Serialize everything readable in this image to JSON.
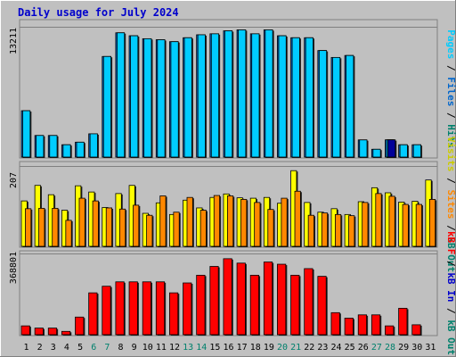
{
  "chart_data": {
    "type": "bar",
    "title": "Daily usage for July 2024",
    "days": [
      "1",
      "2",
      "3",
      "4",
      "5",
      "6",
      "7",
      "8",
      "9",
      "10",
      "11",
      "12",
      "13",
      "14",
      "15",
      "16",
      "17",
      "18",
      "19",
      "20",
      "21",
      "22",
      "23",
      "24",
      "25",
      "26",
      "27",
      "28",
      "29",
      "30",
      "31"
    ],
    "weekend_days": [
      "6",
      "7",
      "13",
      "14",
      "20",
      "21",
      "27",
      "28"
    ],
    "colors": {
      "background": "#c0c0c0",
      "title": "#0000cc",
      "day_normal": "#000000",
      "day_weekend": "#00806c",
      "hits": "#00ccff",
      "files": "#0066cc",
      "pages": "#000099",
      "visits": "#ffff00",
      "sites": "#ff8800",
      "kb_in": "#0000cc",
      "kb_out": "#00806c",
      "kb_f": "#ff0000"
    },
    "panels": [
      {
        "id": "hits_files_pages",
        "ymax_label": "13211",
        "ymax": 13211,
        "side_labels": [
          {
            "text": "Pages",
            "color": "#00ccff"
          },
          {
            "text": " / ",
            "color": "#000000"
          },
          {
            "text": "Files",
            "color": "#0066cc"
          },
          {
            "text": " / ",
            "color": "#000000"
          },
          {
            "text": "Hits",
            "color": "#00806c"
          }
        ],
        "series": [
          {
            "name": "Hits",
            "color": "#0066cc",
            "values": [
              4700,
              2190,
              2190,
              1250,
              1510,
              2360,
              10200,
              12600,
              12300,
              12000,
              11900,
              11700,
              12100,
              12400,
              12500,
              12800,
              12900,
              12500,
              12900,
              12300,
              12100,
              12100,
              10800,
              10100,
              10300,
              1740,
              790,
              1750,
              1250,
              1250,
              0
            ]
          },
          {
            "name": "Files",
            "color": "#00ccff",
            "values": [
              4700,
              2190,
              2190,
              1250,
              1510,
              2360,
              10200,
              12600,
              12300,
              12000,
              11900,
              11700,
              12100,
              12400,
              12500,
              12800,
              12900,
              12500,
              12900,
              12300,
              12100,
              12100,
              10800,
              10100,
              10300,
              1740,
              790,
              1750,
              1250,
              1250,
              0
            ]
          },
          {
            "name": "Pages",
            "color": "#000099",
            "values": [
              0,
              0,
              0,
              0,
              0,
              0,
              0,
              0,
              0,
              0,
              0,
              0,
              0,
              0,
              0,
              0,
              0,
              0,
              0,
              0,
              0,
              0,
              0,
              0,
              0,
              0,
              0,
              1750,
              0,
              0,
              0
            ]
          }
        ]
      },
      {
        "id": "visits_sites",
        "ymax_label": "207",
        "ymax": 207,
        "side_labels": [
          {
            "text": "Visits",
            "color": "#cccc00"
          },
          {
            "text": " / ",
            "color": "#000000"
          },
          {
            "text": "Sites",
            "color": "#ff8800"
          },
          {
            "text": " / ",
            "color": "#000000"
          },
          {
            "text": "kB Out",
            "color": "#00806c"
          }
        ],
        "series": [
          {
            "name": "Visits",
            "color": "#ffff00",
            "values": [
              117,
              157,
              133,
              93,
              156,
              140,
              100,
              136,
              157,
              85,
              112,
              82,
              119,
              99,
              126,
              135,
              125,
              124,
              126,
              111,
              195,
              113,
              88,
              97,
              82,
              115,
              151,
              138,
              114,
              116,
              171
            ]
          },
          {
            "name": "Sites",
            "color": "#ff8800",
            "values": [
              97,
              98,
              98,
              67,
              124,
              117,
              99,
              96,
              106,
              80,
              130,
              88,
              126,
              93,
              131,
              130,
              121,
              113,
              95,
              124,
              142,
              80,
              86,
              82,
              79,
              113,
              136,
              129,
              108,
              108,
              121
            ]
          }
        ]
      },
      {
        "id": "kbytes",
        "ymax_label": "368801",
        "ymax": 368801,
        "side_labels": [
          {
            "text": "kB F",
            "color": "#ff0000"
          },
          {
            "text": " / ",
            "color": "#000000"
          },
          {
            "text": "kB In",
            "color": "#0000cc"
          },
          {
            "text": " / ",
            "color": "#000000"
          },
          {
            "text": "kB Out",
            "color": "#00806c"
          }
        ],
        "series": [
          {
            "name": "kB F",
            "color": "#ff0000",
            "values": [
              40000,
              30000,
              30000,
              15000,
              80000,
              190000,
              220000,
              240000,
              240000,
              240000,
              240000,
              190000,
              235000,
              270000,
              310000,
              345000,
              325000,
              270000,
              330000,
              320000,
              270000,
              300000,
              265000,
              100000,
              75000,
              90000,
              90000,
              40000,
              120000,
              45000,
              0
            ]
          }
        ]
      }
    ]
  }
}
